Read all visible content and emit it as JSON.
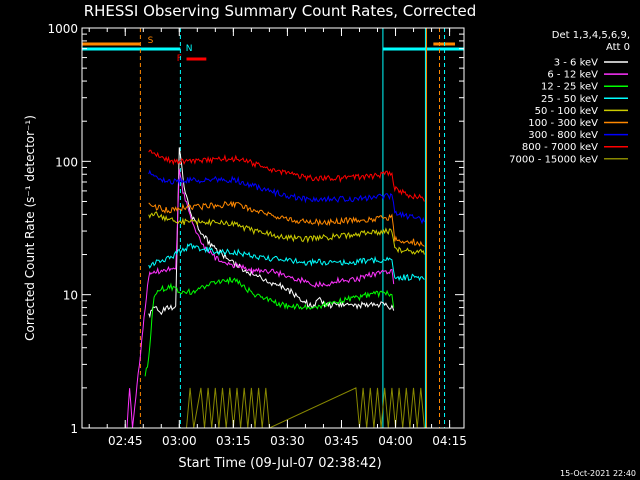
{
  "chart_data": {
    "type": "line",
    "title": "RHESSI Observing Summary Count Rates, Corrected",
    "xlabel": "Start Time (09-Jul-07 02:38:42)",
    "ylabel": "Corrected Count Rate (s⁻¹ detector⁻¹)",
    "x_unit": "minutes",
    "xlim": [
      -6,
      100
    ],
    "ylim": [
      1,
      1000
    ],
    "yscale": "log",
    "x_ticks": [
      {
        "t": 6,
        "label": "02:45"
      },
      {
        "t": 21,
        "label": "03:00"
      },
      {
        "t": 36,
        "label": "03:15"
      },
      {
        "t": 51,
        "label": "03:30"
      },
      {
        "t": 66,
        "label": "03:45"
      },
      {
        "t": 81,
        "label": "04:00"
      },
      {
        "t": 96,
        "label": "04:15"
      }
    ],
    "y_ticks": [
      {
        "v": 1,
        "label": "1"
      },
      {
        "v": 10,
        "label": "10"
      },
      {
        "v": 100,
        "label": "100"
      },
      {
        "v": 1000,
        "label": "1000"
      }
    ],
    "legend": {
      "position": "right",
      "header": [
        "Det 1,3,4,5,6,9,",
        "Att 0"
      ]
    },
    "series": [
      {
        "name": "3 - 6 keV",
        "color": "#ffffff",
        "x": [
          12.5,
          14,
          16,
          18,
          20,
          21,
          22,
          23,
          24,
          26,
          28,
          31,
          34,
          38,
          42,
          46,
          50,
          53,
          56,
          58,
          60,
          62,
          65,
          70,
          74,
          78,
          80,
          80.5
        ],
        "y": [
          7,
          8,
          7.5,
          8,
          8,
          130,
          75,
          55,
          42,
          33,
          27,
          22,
          19,
          16,
          14,
          12.5,
          11.5,
          10,
          8.8,
          8,
          9.3,
          8.2,
          8.4,
          8.3,
          8.4,
          8.4,
          8,
          7.6
        ]
      },
      {
        "name": "6 - 12 keV",
        "color": "#ff33ff",
        "x": [
          6.5,
          7.2,
          8,
          12.5,
          14,
          16,
          18,
          20,
          21,
          22,
          24,
          26,
          28,
          31,
          34,
          38,
          42,
          46,
          50,
          54,
          58,
          62,
          66,
          70,
          74,
          78,
          80,
          80.5
        ],
        "y": [
          1,
          2,
          1,
          14,
          15,
          15,
          16,
          15,
          90,
          60,
          40,
          28,
          22,
          19,
          17,
          16,
          15,
          15,
          14,
          13,
          12,
          12,
          13,
          13,
          14,
          15,
          15,
          12
        ]
      },
      {
        "name": "12 - 25 keV",
        "color": "#00ff00",
        "x": [
          11.5,
          12.5,
          14,
          16,
          18,
          20,
          22,
          24,
          28,
          32,
          36,
          38,
          42,
          46,
          50,
          54,
          58,
          62,
          66,
          70,
          74,
          78,
          80,
          80.5
        ],
        "y": [
          2.5,
          3.3,
          10,
          11,
          11.5,
          11,
          10.5,
          10.5,
          11.5,
          12.5,
          13,
          12,
          10,
          9,
          8.3,
          8.1,
          8.0,
          8.5,
          9,
          9.5,
          10,
          10.3,
          10,
          8
        ]
      },
      {
        "name": "25 - 50 keV",
        "color": "#00ffff",
        "x": [
          12.5,
          14,
          16,
          18,
          20,
          22,
          24,
          28,
          32,
          36,
          40,
          44,
          50,
          56,
          62,
          68,
          74,
          80,
          80.8,
          82,
          84,
          86,
          88,
          89
        ],
        "y": [
          16,
          17,
          18,
          19,
          20,
          22,
          23,
          22,
          21,
          21,
          20,
          19,
          18,
          17.5,
          17.5,
          17.5,
          18,
          18.5,
          14,
          13.5,
          13.5,
          13.5,
          13.5,
          13
        ]
      },
      {
        "name": "50 - 100 keV",
        "color": "#cccc00",
        "x": [
          12.5,
          14,
          16,
          18,
          20,
          22,
          24,
          28,
          32,
          36,
          40,
          44,
          50,
          56,
          62,
          68,
          74,
          80,
          80.8,
          82,
          84,
          86,
          88,
          89
        ],
        "y": [
          38,
          40,
          39,
          37,
          36,
          35,
          35,
          35,
          35,
          34,
          31,
          29,
          27,
          26,
          27,
          28,
          29,
          30,
          22,
          21.5,
          21.5,
          21,
          21,
          20
        ]
      },
      {
        "name": "100 - 300 keV",
        "color": "#ff8800",
        "x": [
          12.5,
          14,
          16,
          18,
          20,
          22,
          24,
          28,
          32,
          36,
          40,
          44,
          50,
          56,
          62,
          68,
          74,
          80,
          80.8,
          82,
          84,
          86,
          88,
          89
        ],
        "y": [
          48,
          46,
          44,
          43,
          43,
          45,
          45,
          46,
          47,
          48,
          45,
          41,
          37,
          35,
          35,
          36,
          37,
          38,
          26,
          25,
          25,
          25,
          24,
          23
        ]
      },
      {
        "name": "300 - 800 keV",
        "color": "#0000ff",
        "x": [
          12.5,
          14,
          16,
          18,
          20,
          22,
          24,
          28,
          32,
          36,
          40,
          44,
          50,
          56,
          62,
          68,
          74,
          80,
          80.8,
          82,
          84,
          86,
          88,
          89
        ],
        "y": [
          82,
          78,
          74,
          70,
          70,
          72,
          72,
          72,
          73,
          73,
          68,
          62,
          56,
          52,
          52,
          52,
          53,
          55,
          42,
          40,
          39,
          38,
          37,
          35
        ]
      },
      {
        "name": "800 - 7000 keV",
        "color": "#ff0000",
        "x": [
          12.5,
          14,
          16,
          18,
          20,
          22,
          24,
          28,
          32,
          36,
          40,
          44,
          50,
          56,
          62,
          68,
          74,
          80,
          80.8,
          82,
          84,
          86,
          88,
          89
        ],
        "y": [
          118,
          112,
          108,
          102,
          98,
          100,
          100,
          102,
          104,
          105,
          100,
          92,
          82,
          76,
          74,
          75,
          77,
          82,
          62,
          60,
          57,
          55,
          53,
          50
        ]
      },
      {
        "name": "7000 - 15000 keV",
        "color": "#888800",
        "x": [
          18,
          21,
          23,
          24,
          25,
          27,
          28,
          29,
          30,
          31,
          32,
          33,
          34,
          35,
          36,
          37,
          38,
          39,
          40,
          41,
          42,
          43,
          44,
          45,
          46,
          70,
          71,
          72,
          73,
          74,
          75,
          76,
          77,
          78,
          79,
          80,
          81,
          82,
          83,
          84,
          85,
          86,
          87,
          88,
          89
        ],
        "y": [
          1,
          1,
          1,
          2,
          1,
          2,
          1,
          2,
          1,
          2,
          1,
          2,
          1,
          2,
          1,
          2,
          1,
          2,
          1,
          2,
          1,
          2,
          1,
          2,
          1,
          2,
          1,
          2,
          1,
          2,
          1,
          2,
          1,
          2,
          1,
          2,
          1,
          2,
          1,
          2,
          1,
          2,
          1,
          2,
          1
        ]
      }
    ],
    "annotations": {
      "flag_labels": [
        "S",
        "N",
        "F"
      ],
      "timestamp": "15-Oct-2021 22:40"
    }
  }
}
